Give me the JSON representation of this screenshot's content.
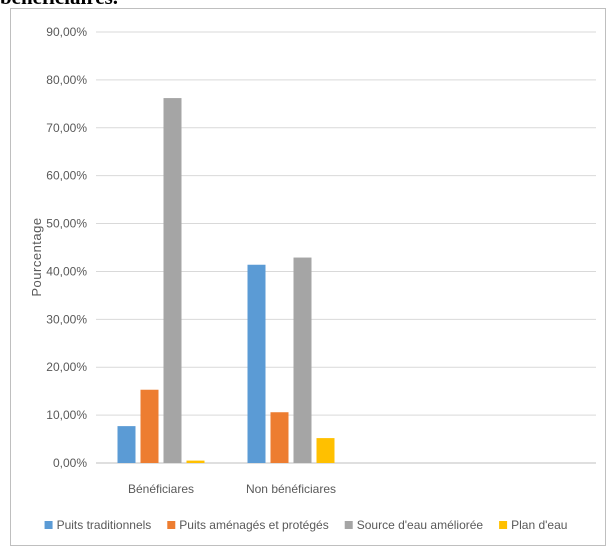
{
  "page_heading": "bénéficiaires.",
  "chart_data": {
    "type": "bar",
    "title": "",
    "xlabel": "",
    "ylabel": "Pourcentage",
    "ylim": [
      0,
      90
    ],
    "yticks": [
      "0,00%",
      "10,00%",
      "20,00%",
      "30,00%",
      "40,00%",
      "50,00%",
      "60,00%",
      "70,00%",
      "80,00%",
      "90,00%"
    ],
    "grid": true,
    "legend_position": "bottom",
    "categories": [
      "Bénéficiares",
      "Non bénéficiares",
      "",
      ""
    ],
    "series": [
      {
        "name": "Puits traditionnels",
        "color": "#5b9bd5",
        "values": [
          7.7,
          41.4,
          null,
          null
        ]
      },
      {
        "name": "Puits aménagés et protégés",
        "color": "#ed7d31",
        "values": [
          15.3,
          10.6,
          null,
          null
        ]
      },
      {
        "name": "Source d'eau améliorée",
        "color": "#a5a5a5",
        "values": [
          76.2,
          42.9,
          null,
          null
        ]
      },
      {
        "name": "Plan d'eau",
        "color": "#ffc000",
        "values": [
          0.5,
          5.2,
          null,
          null
        ]
      }
    ]
  }
}
